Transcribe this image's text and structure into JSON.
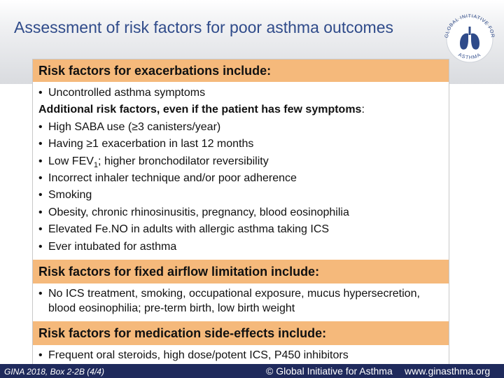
{
  "slide": {
    "title": "Assessment of risk factors for poor asthma outcomes",
    "logo_text_top": "GLOBAL INITIATIVE FOR",
    "logo_text_bottom": "ASTHMA"
  },
  "sections": [
    {
      "heading": "Risk factors for exacerbations include:",
      "lead_bullet": "Uncontrolled asthma symptoms",
      "subheading": "Additional risk factors, even if the patient has few symptoms",
      "subheading_suffix": ":",
      "bullets": [
        "High SABA use (≥3 canisters/year)",
        "Having ≥1 exacerbation in last 12 months",
        "Incorrect inhaler technique and/or poor adherence",
        "Smoking",
        "Obesity, chronic rhinosinusitis, pregnancy, blood eosinophilia",
        "Elevated Fe.NO in adults with allergic asthma taking ICS",
        "Ever intubated for asthma"
      ],
      "fev_bullet": {
        "prefix": "Low FEV",
        "subscript": "1",
        "suffix": "; higher bronchodilator reversibility"
      }
    },
    {
      "heading": "Risk factors for fixed airflow limitation include:",
      "bullets": [
        "No ICS treatment, smoking, occupational exposure, mucus hypersecretion, blood eosinophilia; pre-term birth, low birth weight"
      ]
    },
    {
      "heading": "Risk factors for medication side-effects include:",
      "bullets": [
        "Frequent oral steroids, high dose/potent ICS, P450 inhibitors"
      ]
    }
  ],
  "footer": {
    "source": "GINA 2018, Box 2-2B (4/4)",
    "copyright": "© Global Initiative for Asthma",
    "website": "www.ginasthma.org"
  },
  "colors": {
    "title": "#2f4b8a",
    "section_header_bg": "#f5b97b",
    "footer_bg": "#1f2a5c"
  }
}
